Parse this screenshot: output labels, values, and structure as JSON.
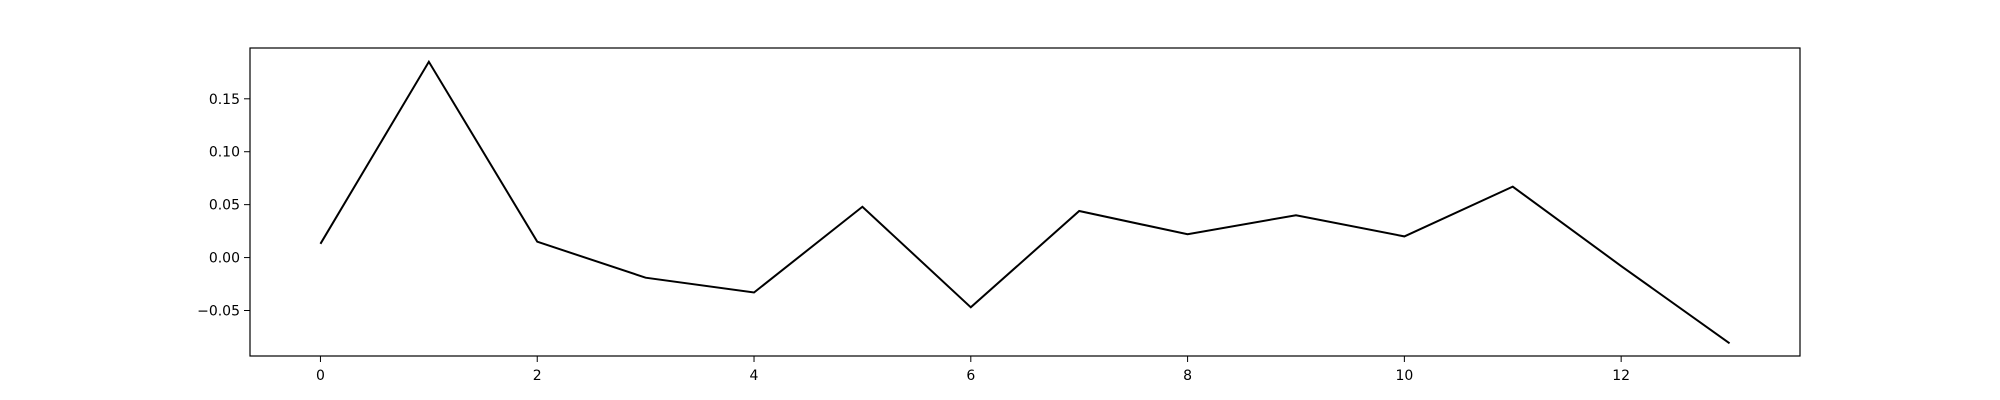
{
  "chart_data": {
    "type": "line",
    "title": "",
    "xlabel": "",
    "ylabel": "",
    "xlim": [
      -0.65,
      13.65
    ],
    "ylim": [
      -0.093,
      0.198
    ],
    "grid": false,
    "x_ticks": [
      0,
      2,
      4,
      6,
      8,
      10,
      12
    ],
    "y_ticks": [
      -0.05,
      0.0,
      0.05,
      0.1,
      0.15
    ],
    "x_tick_labels": [
      "0",
      "2",
      "4",
      "6",
      "8",
      "10",
      "12"
    ],
    "y_tick_labels": [
      "−0.05",
      "0.00",
      "0.05",
      "0.10",
      "0.15"
    ],
    "series": [
      {
        "color": "#000000",
        "x": [
          0,
          1,
          2,
          3,
          4,
          5,
          6,
          7,
          8,
          9,
          10,
          11,
          12,
          13
        ],
        "y": [
          0.013,
          0.185,
          0.015,
          -0.019,
          -0.033,
          0.048,
          -0.047,
          0.044,
          0.022,
          0.04,
          0.02,
          0.067,
          -0.008,
          -0.081
        ]
      }
    ]
  }
}
